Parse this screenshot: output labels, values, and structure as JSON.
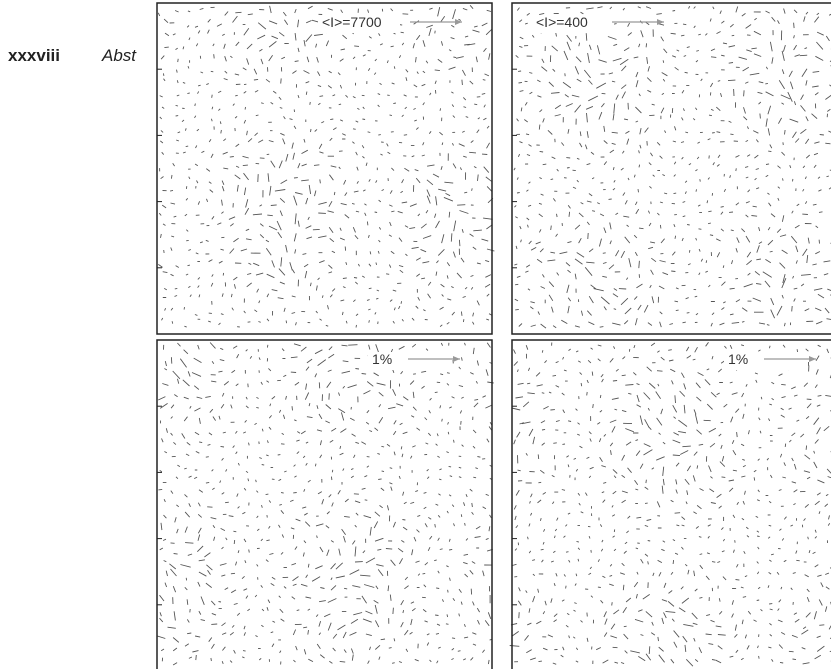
{
  "header": {
    "page_number": "xxxviii",
    "section": "Abst"
  },
  "figure": {
    "panels": [
      {
        "label": "<I>=7700"
      },
      {
        "label": "<I>=400"
      },
      {
        "label": "1%"
      },
      {
        "label": "1%"
      }
    ]
  }
}
